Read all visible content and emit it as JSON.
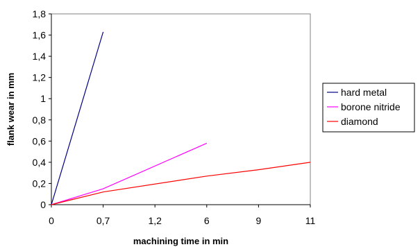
{
  "chart_data": {
    "type": "line",
    "title": "",
    "xlabel": "machining time in min",
    "ylabel": "flank wear in mm",
    "x_categories": [
      "0",
      "0,7",
      "1,2",
      "6",
      "9",
      "11"
    ],
    "y_ticks": [
      "0",
      "0,2",
      "0,4",
      "0,6",
      "0,8",
      "1",
      "1,2",
      "1,4",
      "1,6",
      "1,8"
    ],
    "ylim": [
      0,
      1.8
    ],
    "grid": false,
    "legend_position": "right",
    "series": [
      {
        "name": "hard metal",
        "color": "#000080",
        "points": [
          [
            0,
            0
          ],
          [
            0.7,
            1.63
          ]
        ]
      },
      {
        "name": "borone nitride",
        "color": "#ff00ff",
        "points": [
          [
            0,
            0
          ],
          [
            0.7,
            0.15
          ],
          [
            6,
            0.58
          ]
        ]
      },
      {
        "name": "diamond",
        "color": "#ff0000",
        "points": [
          [
            0,
            0
          ],
          [
            0.7,
            0.12
          ],
          [
            6,
            0.27
          ],
          [
            9,
            0.33
          ],
          [
            11,
            0.4
          ]
        ]
      }
    ]
  }
}
